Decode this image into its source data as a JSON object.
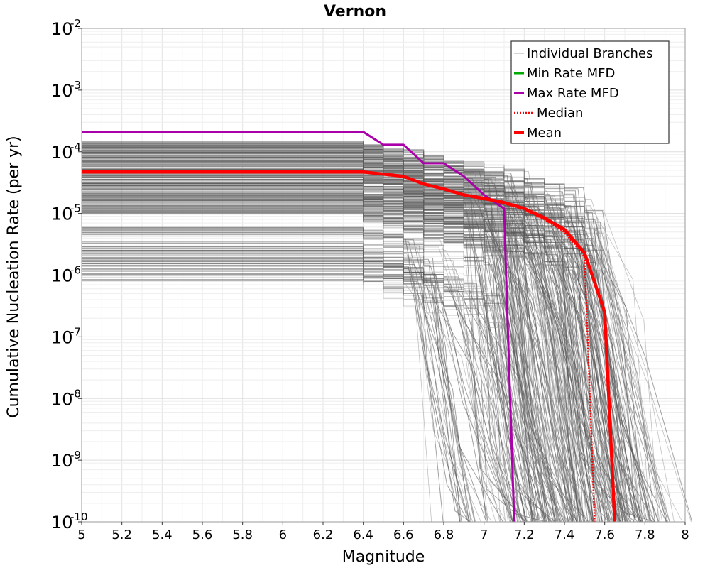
{
  "chart_data": {
    "type": "line",
    "title": "Vernon",
    "xlabel": "Magnitude",
    "ylabel": "Cumulative Nucleation Rate (per yr)",
    "xlim": [
      5,
      8
    ],
    "ylim": [
      1e-10,
      0.01
    ],
    "yscale": "log",
    "grid": true,
    "legend_position": "top-right",
    "x_ticks": [
      "5",
      "5.2",
      "5.4",
      "5.6",
      "5.8",
      "6",
      "6.2",
      "6.4",
      "6.6",
      "6.8",
      "7",
      "7.2",
      "7.4",
      "7.6",
      "7.8",
      "8"
    ],
    "y_ticks": [
      {
        "base": "10",
        "exp": "-2"
      },
      {
        "base": "10",
        "exp": "-3"
      },
      {
        "base": "10",
        "exp": "-4"
      },
      {
        "base": "10",
        "exp": "-5"
      },
      {
        "base": "10",
        "exp": "-6"
      },
      {
        "base": "10",
        "exp": "-7"
      },
      {
        "base": "10",
        "exp": "-8"
      },
      {
        "base": "10",
        "exp": "-9"
      },
      {
        "base": "10",
        "exp": "-10"
      }
    ],
    "legend": [
      {
        "label": "Individual Branches",
        "color": "#aaaaaa",
        "style": "thin"
      },
      {
        "label": "Min Rate MFD",
        "color": "#00aa00",
        "style": "solid"
      },
      {
        "label": "Max Rate MFD",
        "color": "#aa00aa",
        "style": "solid"
      },
      {
        "label": "Median",
        "color": "#ff0000",
        "style": "dotted"
      },
      {
        "label": "Mean",
        "color": "#ff0000",
        "style": "thick"
      }
    ],
    "branches": {
      "count": 300,
      "color": "#555555",
      "high_group": {
        "rate_min": 9e-06,
        "rate_max": 0.00015,
        "corner_m_min": 6.9,
        "corner_m_max": 7.6
      },
      "low_group": {
        "rate_min": 8e-07,
        "rate_max": 6e-06,
        "corner_m_min": 6.6,
        "corner_m_max": 7.1
      }
    },
    "series": [
      {
        "name": "Max Rate MFD",
        "color": "#aa00aa",
        "x": [
          5.0,
          6.4,
          6.5,
          6.6,
          6.7,
          6.8,
          6.9,
          7.0,
          7.1,
          7.11,
          7.15
        ],
        "values": [
          0.00021,
          0.00021,
          0.00013,
          0.00013,
          6.5e-05,
          6.5e-05,
          4e-05,
          2e-05,
          1.2e-05,
          1e-06,
          1e-10
        ]
      },
      {
        "name": "Mean",
        "color": "#ff0000",
        "x": [
          5.0,
          6.4,
          6.6,
          6.7,
          6.8,
          6.9,
          7.0,
          7.1,
          7.2,
          7.3,
          7.4,
          7.5,
          7.6,
          7.65
        ],
        "values": [
          4.7e-05,
          4.7e-05,
          4e-05,
          3e-05,
          2.5e-05,
          2e-05,
          1.75e-05,
          1.5e-05,
          1.2e-05,
          8.5e-06,
          5.5e-06,
          2.3e-06,
          2.5e-07,
          1e-10
        ]
      },
      {
        "name": "Median",
        "color": "#ff0000",
        "x": [
          5.0,
          6.4,
          6.6,
          6.7,
          6.8,
          6.9,
          7.0,
          7.1,
          7.2,
          7.3,
          7.4,
          7.5,
          7.55
        ],
        "values": [
          4.6e-05,
          4.6e-05,
          3.9e-05,
          3e-05,
          2.5e-05,
          2e-05,
          1.7e-05,
          1.45e-05,
          1.15e-05,
          8e-06,
          5e-06,
          2e-06,
          1e-10
        ]
      }
    ]
  }
}
